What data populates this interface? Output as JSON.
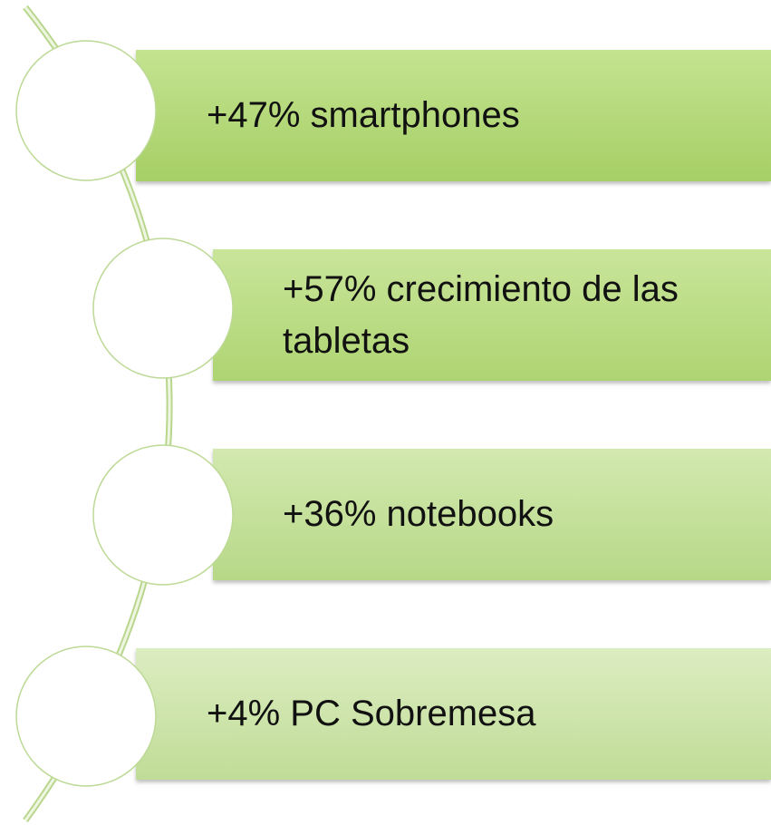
{
  "items": [
    {
      "label": "+47% smartphones"
    },
    {
      "label": "+57% crecimiento de las tabletas"
    },
    {
      "label": "+36% notebooks"
    },
    {
      "label": "+4% PC Sobremesa"
    }
  ]
}
